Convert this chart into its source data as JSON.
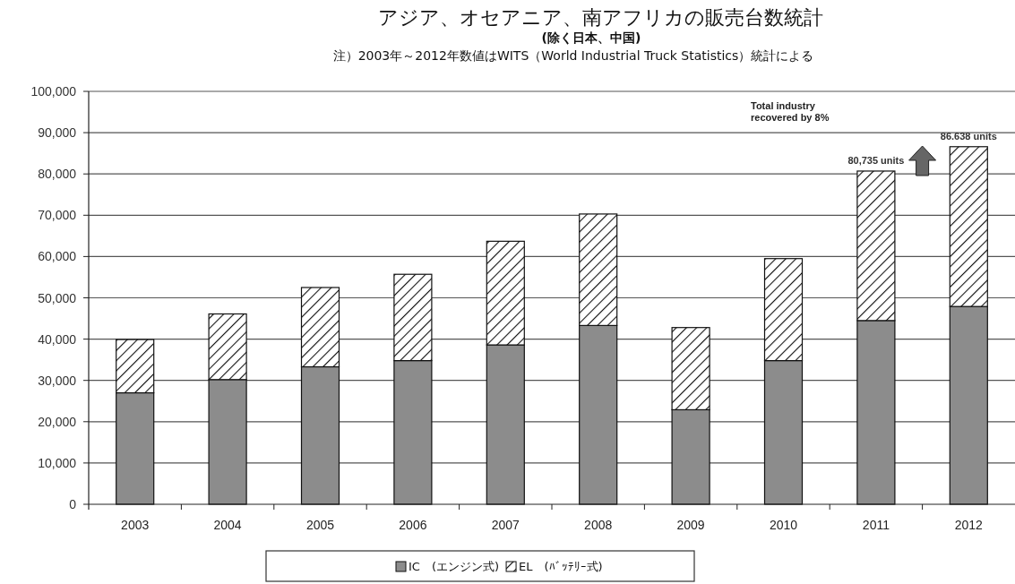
{
  "chart_data": {
    "type": "bar",
    "stacked": true,
    "title": "アジア、オセアニア、南アフリカの販売台数統計",
    "subtitle": "(除く日本、中国)",
    "categories": [
      "2003",
      "2004",
      "2005",
      "2006",
      "2007",
      "2008",
      "2009",
      "2010",
      "2011",
      "2012"
    ],
    "series": [
      {
        "name": "IC　(エンジン式)",
        "color": "#8c8c8c",
        "values": [
          27000,
          30200,
          33300,
          34800,
          38600,
          43300,
          22900,
          34800,
          44500,
          47900
        ]
      },
      {
        "name": "EL　(ﾊﾞｯﾃﾘｰ式)",
        "color": "#111111",
        "values": [
          12900,
          15900,
          19200,
          20900,
          25100,
          27000,
          19900,
          24700,
          36200,
          38700
        ]
      }
    ],
    "ylim": [
      0,
      100000
    ],
    "yticks": [
      {
        "value": 0,
        "label": "0"
      },
      {
        "value": 10000,
        "label": "10,000"
      },
      {
        "value": 20000,
        "label": "20,000"
      },
      {
        "value": 30000,
        "label": "30,000"
      },
      {
        "value": 40000,
        "label": "40,000"
      },
      {
        "value": 50000,
        "label": "50,000"
      },
      {
        "value": 60000,
        "label": "60,000"
      },
      {
        "value": 70000,
        "label": "70,000"
      },
      {
        "value": 80000,
        "label": "80,000"
      },
      {
        "value": 90000,
        "label": "90,000"
      },
      {
        "value": 100000,
        "label": "100,000"
      }
    ],
    "grid": "y",
    "legend": "bottom",
    "annotations": [
      "注）2003年～2012年数値はWITS（World Industrial Truck Statistics）統計による",
      "Total industry recovered by 8%",
      {
        "text": "80,735 units",
        "x": "2011",
        "y": 80735
      },
      {
        "text": "86.638 units",
        "x": "2012",
        "y": 86638
      }
    ]
  }
}
